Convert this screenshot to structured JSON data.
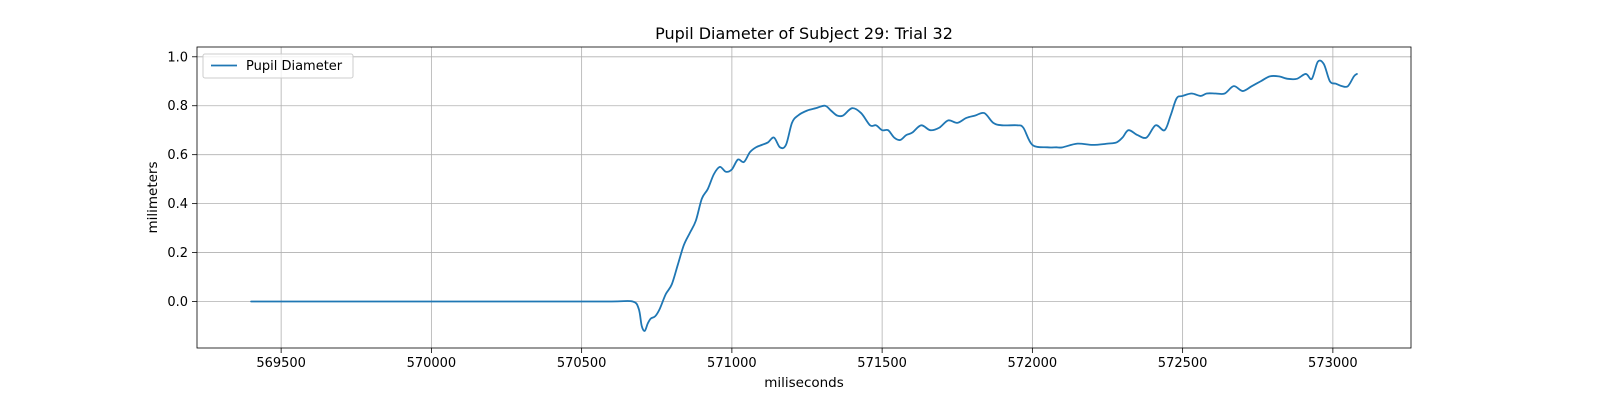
{
  "chart_data": {
    "type": "line",
    "title": "Pupil Diameter of Subject 29: Trial 32",
    "xlabel": "miliseconds",
    "ylabel": "milimeters",
    "xlim": [
      569220,
      573260
    ],
    "ylim": [
      -0.19,
      1.04
    ],
    "xticks": [
      569500,
      570000,
      570500,
      571000,
      571500,
      572000,
      572500,
      573000
    ],
    "xtick_labels": [
      "569500",
      "570000",
      "570500",
      "571000",
      "571500",
      "572000",
      "572500",
      "573000"
    ],
    "yticks": [
      0.0,
      0.2,
      0.4,
      0.6,
      0.8,
      1.0
    ],
    "ytick_labels": [
      "0.0",
      "0.2",
      "0.4",
      "0.6",
      "0.8",
      "1.0"
    ],
    "grid": true,
    "legend_position": "top-left",
    "series": [
      {
        "name": "Pupil Diameter",
        "color": "#1f77b4",
        "x": [
          569400,
          569600,
          569800,
          570000,
          570200,
          570400,
          570600,
          570670,
          570690,
          570700,
          570710,
          570720,
          570730,
          570745,
          570760,
          570780,
          570800,
          570820,
          570840,
          570860,
          570880,
          570900,
          570920,
          570940,
          570960,
          570980,
          571000,
          571020,
          571040,
          571060,
          571080,
          571100,
          571120,
          571140,
          571160,
          571180,
          571200,
          571220,
          571250,
          571280,
          571310,
          571330,
          571350,
          571370,
          571400,
          571430,
          571460,
          571480,
          571500,
          571520,
          571540,
          571560,
          571580,
          571600,
          571630,
          571660,
          571690,
          571720,
          571750,
          571780,
          571810,
          571840,
          571870,
          571900,
          571950,
          571970,
          572000,
          572050,
          572080,
          572100,
          572150,
          572200,
          572250,
          572280,
          572300,
          572320,
          572350,
          572380,
          572410,
          572440,
          572460,
          572480,
          572500,
          572530,
          572560,
          572580,
          572610,
          572640,
          572670,
          572700,
          572730,
          572760,
          572790,
          572820,
          572850,
          572880,
          572910,
          572930,
          572950,
          572970,
          572990,
          573010,
          573030,
          573050,
          573070,
          573080
        ],
        "y": [
          0.0,
          0.0,
          0.0,
          0.0,
          0.0,
          0.0,
          0.0,
          0.0,
          -0.03,
          -0.1,
          -0.12,
          -0.09,
          -0.07,
          -0.06,
          -0.03,
          0.03,
          0.07,
          0.15,
          0.23,
          0.28,
          0.33,
          0.42,
          0.46,
          0.52,
          0.55,
          0.53,
          0.54,
          0.58,
          0.57,
          0.61,
          0.63,
          0.64,
          0.65,
          0.67,
          0.63,
          0.64,
          0.73,
          0.76,
          0.78,
          0.79,
          0.8,
          0.78,
          0.76,
          0.76,
          0.79,
          0.77,
          0.72,
          0.72,
          0.7,
          0.7,
          0.67,
          0.66,
          0.68,
          0.69,
          0.72,
          0.7,
          0.71,
          0.74,
          0.73,
          0.75,
          0.76,
          0.77,
          0.73,
          0.72,
          0.72,
          0.71,
          0.64,
          0.63,
          0.63,
          0.63,
          0.645,
          0.64,
          0.645,
          0.65,
          0.67,
          0.7,
          0.68,
          0.67,
          0.72,
          0.7,
          0.76,
          0.83,
          0.84,
          0.85,
          0.84,
          0.85,
          0.85,
          0.85,
          0.88,
          0.86,
          0.88,
          0.9,
          0.92,
          0.92,
          0.91,
          0.91,
          0.93,
          0.91,
          0.98,
          0.97,
          0.9,
          0.89,
          0.88,
          0.88,
          0.92,
          0.93
        ]
      }
    ]
  }
}
